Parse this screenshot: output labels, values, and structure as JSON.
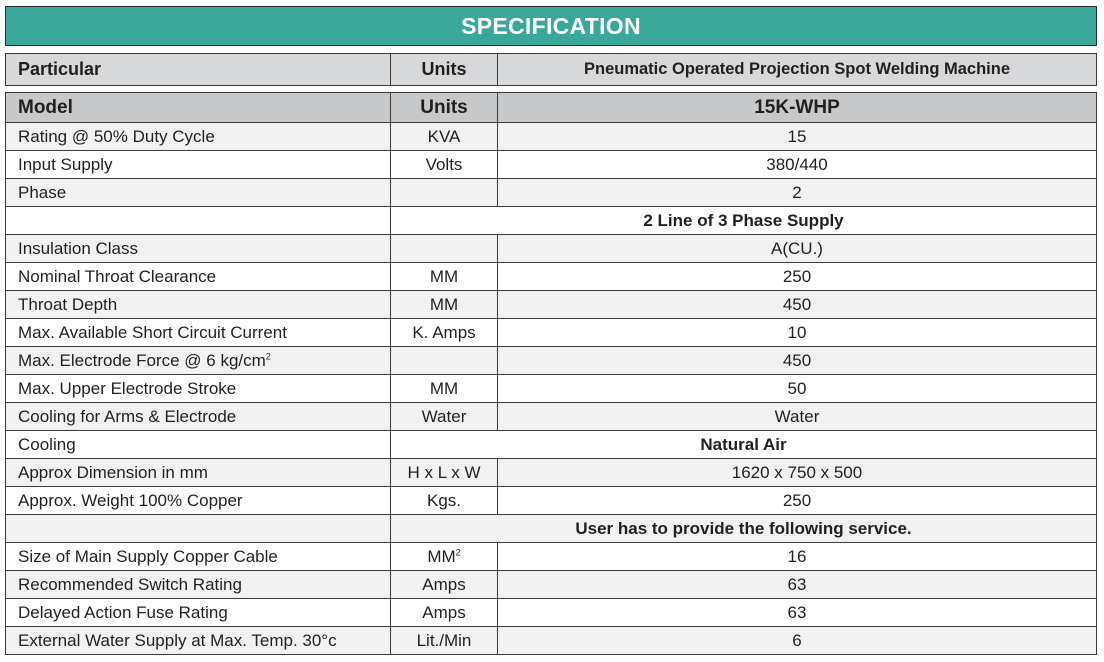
{
  "title": "SPECIFICATION",
  "header": {
    "col1": "Particular",
    "col2": "Units",
    "col3": "Pneumatic Operated Projection Spot Welding Machine"
  },
  "model_row": {
    "label": "Model",
    "units": "Units",
    "value": "15K-WHP"
  },
  "rows": [
    {
      "label": "Rating @ 50% Duty Cycle",
      "units": "KVA",
      "value": "15"
    },
    {
      "label": "Input Supply",
      "units": "Volts",
      "value": "380/440"
    },
    {
      "label": "Phase",
      "units": "",
      "value": "2"
    },
    {
      "label": "",
      "value": "2 Line of 3 Phase Supply"
    },
    {
      "label": "Insulation Class",
      "units": "",
      "value": "A(CU.)"
    },
    {
      "label": "Nominal Throat Clearance",
      "units": "MM",
      "value": "250"
    },
    {
      "label": "Throat Depth",
      "units": "MM",
      "value": "450"
    },
    {
      "label": "Max. Available Short Circuit Current",
      "units": "K. Amps",
      "value": "10"
    },
    {
      "label": "Max. Electrode Force @ 6 kg/cm",
      "label_sup": "2",
      "units": "",
      "value": "450"
    },
    {
      "label": "Max. Upper Electrode Stroke",
      "units": "MM",
      "value": "50"
    },
    {
      "label": "Cooling for Arms & Electrode",
      "units": "Water",
      "value": "Water"
    },
    {
      "label": "Cooling",
      "value": "Natural Air"
    },
    {
      "label": "Approx Dimension in mm",
      "units": "H x L x W",
      "value": "1620 x 750 x 500"
    },
    {
      "label": "Approx. Weight 100% Copper",
      "units": "Kgs.",
      "value": "250"
    },
    {
      "label": "",
      "value": "User has to provide the following service."
    },
    {
      "label": "Size of Main Supply Copper Cable",
      "units": "MM",
      "units_sup": "2",
      "value": "16"
    },
    {
      "label": "Recommended Switch Rating",
      "units": "Amps",
      "value": "63"
    },
    {
      "label": "Delayed Action Fuse Rating",
      "units": "Amps",
      "value": "63"
    },
    {
      "label": "External Water Supply at Max. Temp. 30°c",
      "units": "Lit./Min",
      "value": "6"
    }
  ],
  "colors": {
    "title_bg": "#3aa79b",
    "header_bg": "#d7d8d9",
    "model_bg": "#c7c8c9"
  }
}
